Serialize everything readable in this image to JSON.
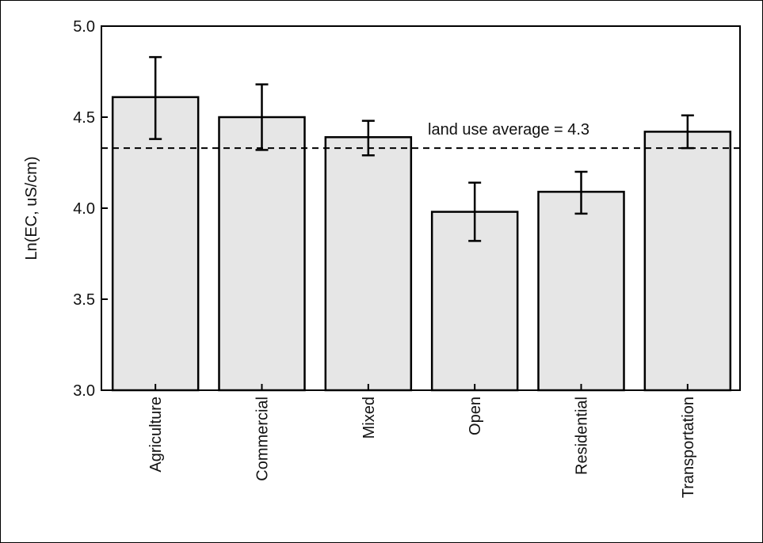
{
  "chart_data": {
    "type": "bar",
    "title": "",
    "xlabel": "",
    "ylabel": "Ln(EC, uS/cm)",
    "ylim": [
      3.0,
      5.0
    ],
    "yticks": [
      "3.0",
      "3.5",
      "4.0",
      "4.5",
      "5.0"
    ],
    "categories": [
      "Agriculture",
      "Commercial",
      "Mixed",
      "Open",
      "Residential",
      "Transportation"
    ],
    "values": [
      4.61,
      4.5,
      4.39,
      3.98,
      4.09,
      4.42
    ],
    "error_low": [
      4.38,
      4.32,
      4.29,
      3.82,
      3.97,
      4.33
    ],
    "error_high": [
      4.83,
      4.68,
      4.48,
      4.14,
      4.2,
      4.51
    ],
    "reference_line": {
      "value": 4.33,
      "style": "dashed",
      "label": "land use average = 4.3"
    },
    "grid": false,
    "bar_color": "#e6e6e6",
    "edge_color": "#000000"
  }
}
